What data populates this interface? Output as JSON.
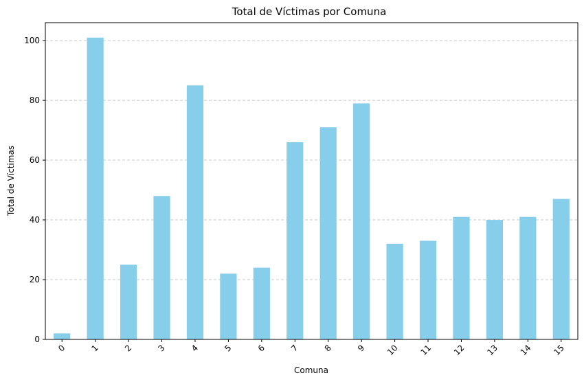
{
  "chart_data": {
    "type": "bar",
    "title": "Total de Víctimas por Comuna",
    "xlabel": "Comuna",
    "ylabel": "Total de Víctimas",
    "categories": [
      "0",
      "1",
      "2",
      "3",
      "4",
      "5",
      "6",
      "7",
      "8",
      "9",
      "10",
      "11",
      "12",
      "13",
      "14",
      "15"
    ],
    "values": [
      2,
      101,
      25,
      48,
      85,
      22,
      24,
      66,
      71,
      79,
      32,
      33,
      41,
      40,
      41,
      47
    ],
    "ylim": [
      0,
      106
    ],
    "yticks": [
      0,
      20,
      40,
      60,
      80,
      100
    ],
    "grid": "y",
    "bar_color": "#87ceeb",
    "x_tick_rotation": 45
  }
}
